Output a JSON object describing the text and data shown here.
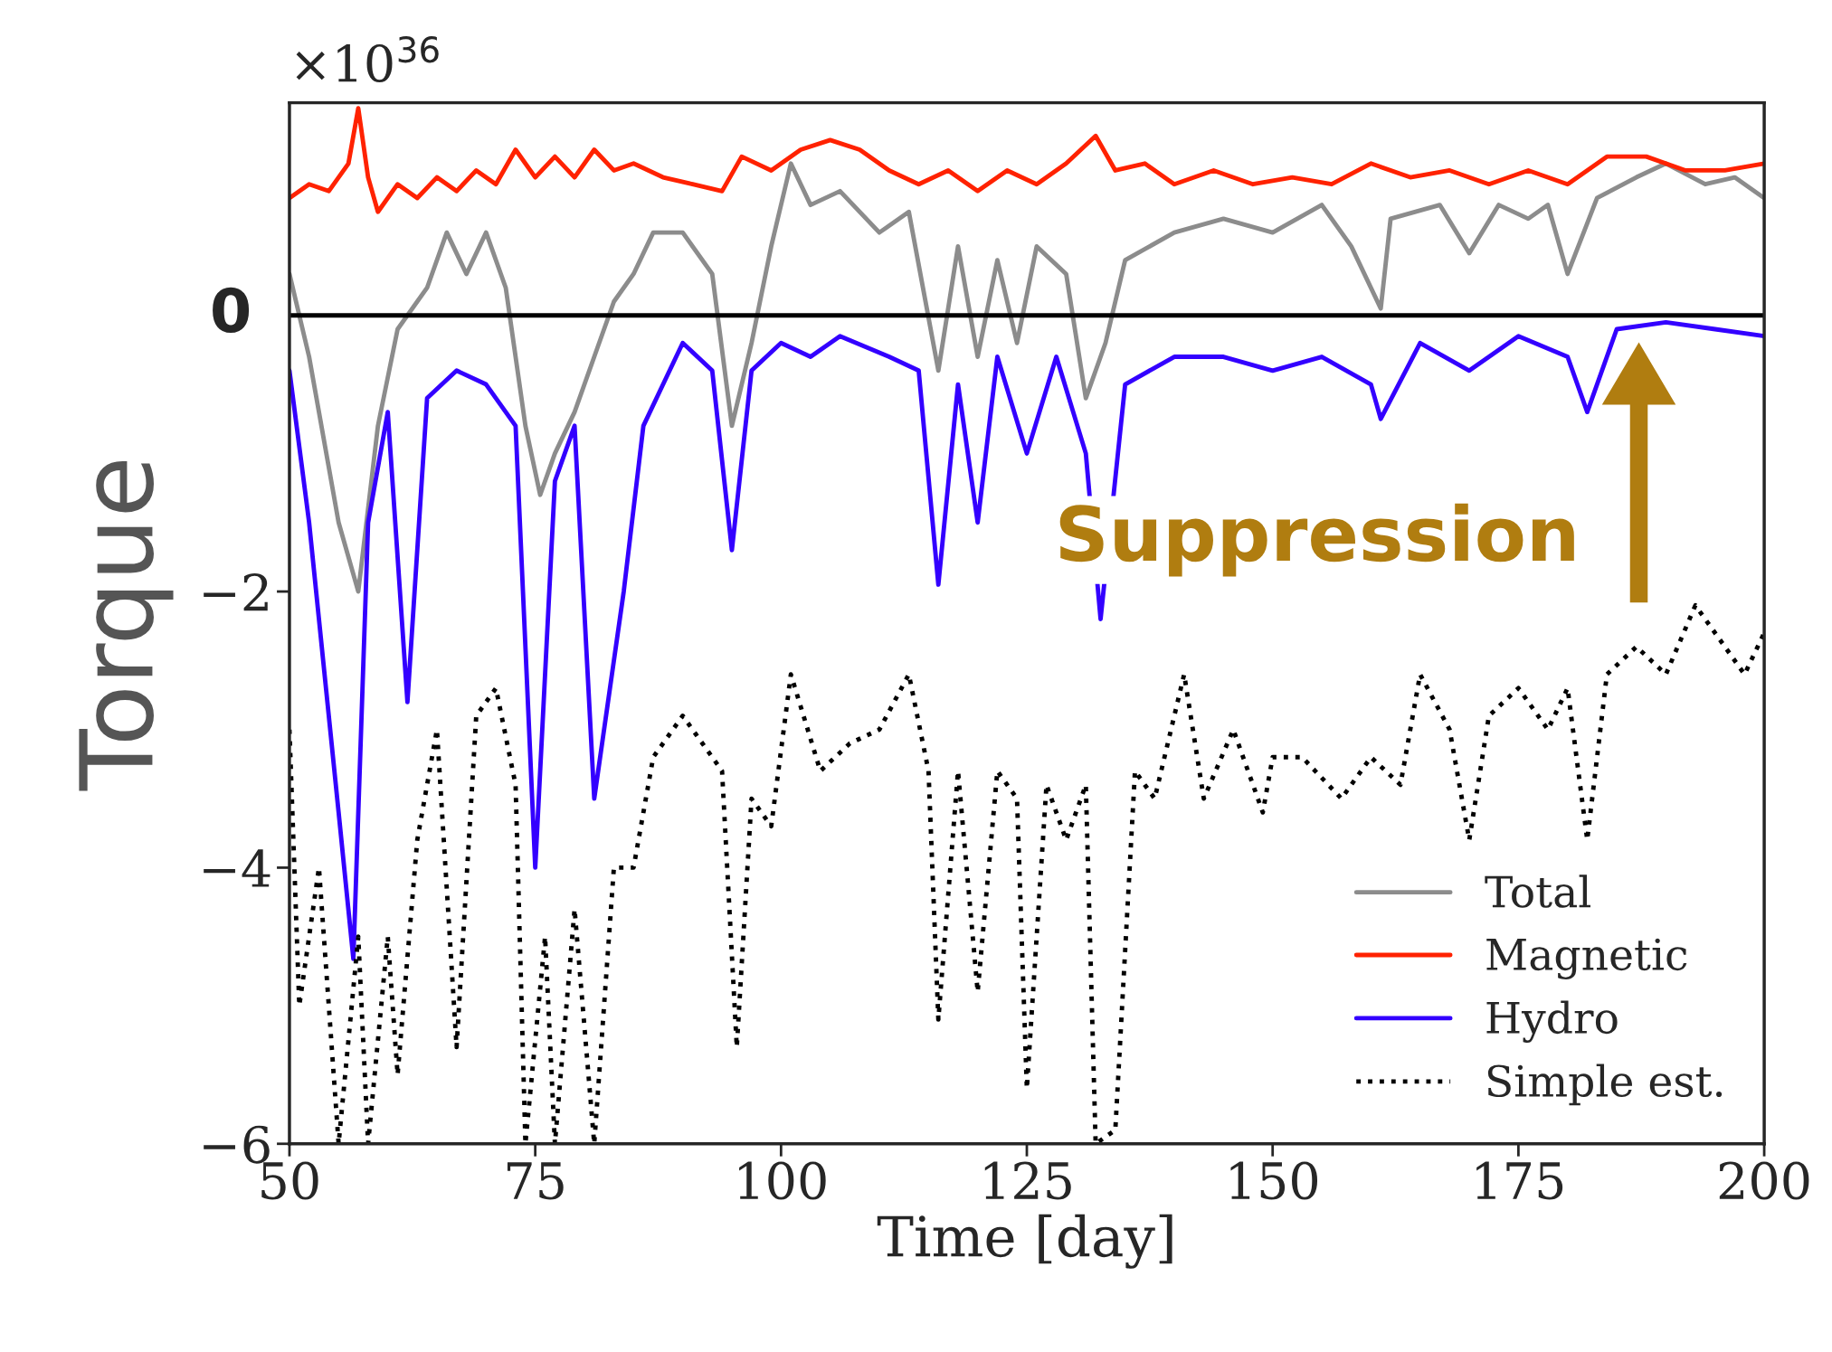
{
  "chart_data": {
    "type": "line",
    "xlabel": "Time [day]",
    "ylabel": "Torque",
    "xlim": [
      50,
      200
    ],
    "xticks": [
      50,
      75,
      100,
      125,
      150,
      175,
      200
    ],
    "ylim": [
      -6,
      1.54
    ],
    "yticks": [
      {
        "value": -6,
        "label": "−6"
      },
      {
        "value": -4,
        "label": "−4"
      },
      {
        "value": -2,
        "label": "−2"
      }
    ],
    "legend": "bottom right",
    "grid": false,
    "ref_lines": [
      {
        "axis": "y",
        "value": 0,
        "label": "0",
        "color": "#000000"
      }
    ],
    "annotations": [
      "×10$^{36}$",
      "Suppression"
    ],
    "series": [
      {
        "name": "Total",
        "color": "#8c8c8c",
        "line_style": "solid",
        "x": [
          50,
          52,
          55,
          57,
          59,
          61,
          64,
          66,
          68,
          70,
          72,
          74,
          75.5,
          77,
          79,
          81,
          83,
          85,
          87,
          90,
          93,
          95,
          97,
          99,
          101,
          103,
          106,
          110,
          113,
          116,
          118,
          120,
          122,
          124,
          126,
          129,
          131,
          133,
          135,
          140,
          145,
          150,
          155,
          158,
          161,
          162,
          167,
          170,
          173,
          176,
          178,
          180,
          183,
          187,
          190,
          194,
          197,
          200
        ],
        "values": [
          0.3,
          -0.3,
          -1.5,
          -2.0,
          -0.8,
          -0.1,
          0.2,
          0.6,
          0.3,
          0.6,
          0.2,
          -0.8,
          -1.3,
          -1.0,
          -0.7,
          -0.3,
          0.1,
          0.3,
          0.6,
          0.6,
          0.3,
          -0.8,
          -0.2,
          0.5,
          1.1,
          0.8,
          0.9,
          0.6,
          0.75,
          -0.4,
          0.5,
          -0.3,
          0.4,
          -0.2,
          0.5,
          0.3,
          -0.6,
          -0.2,
          0.4,
          0.6,
          0.7,
          0.6,
          0.8,
          0.5,
          0.05,
          0.7,
          0.8,
          0.45,
          0.8,
          0.7,
          0.8,
          0.3,
          0.85,
          1.0,
          1.1,
          0.95,
          1.0,
          0.85
        ]
      },
      {
        "name": "Magnetic",
        "color": "#ff2200",
        "line_style": "solid",
        "x": [
          50,
          52,
          54,
          56,
          57,
          58,
          59,
          61,
          63,
          65,
          67,
          69,
          71,
          73,
          75,
          77,
          79,
          81,
          83,
          85,
          88,
          91,
          94,
          96,
          99,
          102,
          105,
          108,
          111,
          114,
          117,
          120,
          123,
          126,
          129,
          132,
          134,
          137,
          140,
          144,
          148,
          152,
          156,
          160,
          164,
          168,
          172,
          176,
          180,
          184,
          188,
          192,
          196,
          200
        ],
        "values": [
          0.85,
          0.95,
          0.9,
          1.1,
          1.5,
          1.0,
          0.75,
          0.95,
          0.85,
          1.0,
          0.9,
          1.05,
          0.95,
          1.2,
          1.0,
          1.15,
          1.0,
          1.2,
          1.05,
          1.1,
          1.0,
          0.95,
          0.9,
          1.15,
          1.05,
          1.2,
          1.27,
          1.2,
          1.05,
          0.95,
          1.05,
          0.9,
          1.05,
          0.95,
          1.1,
          1.3,
          1.05,
          1.1,
          0.95,
          1.05,
          0.95,
          1.0,
          0.95,
          1.1,
          1.0,
          1.05,
          0.95,
          1.05,
          0.95,
          1.15,
          1.15,
          1.05,
          1.05,
          1.1
        ]
      },
      {
        "name": "Hydro",
        "color": "#3300ff",
        "line_style": "solid",
        "x": [
          50,
          52,
          55,
          56.5,
          58,
          60,
          62,
          64,
          67,
          70,
          73,
          75,
          77,
          79,
          81,
          84,
          86,
          88,
          90,
          93,
          95,
          97,
          100,
          103,
          106,
          111,
          114,
          116,
          118,
          120,
          122,
          125,
          128,
          131,
          132.5,
          135,
          140,
          145,
          150,
          155,
          160,
          161,
          165,
          170,
          175,
          180,
          182,
          185,
          190,
          195,
          200
        ],
        "values": [
          -0.4,
          -1.5,
          -3.6,
          -4.66,
          -1.5,
          -0.7,
          -2.8,
          -0.6,
          -0.4,
          -0.5,
          -0.8,
          -4.0,
          -1.2,
          -0.8,
          -3.5,
          -2.0,
          -0.8,
          -0.5,
          -0.2,
          -0.4,
          -1.7,
          -0.4,
          -0.2,
          -0.3,
          -0.15,
          -0.3,
          -0.4,
          -1.95,
          -0.5,
          -1.5,
          -0.3,
          -1.0,
          -0.3,
          -1.0,
          -2.2,
          -0.5,
          -0.3,
          -0.3,
          -0.4,
          -0.3,
          -0.5,
          -0.75,
          -0.2,
          -0.4,
          -0.15,
          -0.3,
          -0.7,
          -0.1,
          -0.05,
          -0.1,
          -0.15
        ]
      },
      {
        "name": "Simple est.",
        "color": "#000000",
        "line_style": "dotted",
        "x": [
          50,
          51,
          53,
          55,
          57,
          58,
          60,
          61,
          63,
          65,
          67,
          69,
          71,
          73,
          74,
          76,
          77,
          79,
          81,
          83,
          85,
          87,
          90,
          92,
          94,
          95.5,
          97,
          99,
          101,
          104,
          107,
          110,
          113,
          115,
          116,
          118,
          120,
          122,
          124,
          125,
          127,
          129,
          131,
          132,
          134,
          136,
          138,
          141,
          143,
          146,
          149,
          150,
          153,
          157,
          160,
          163,
          165,
          168,
          170,
          172,
          175,
          178,
          180,
          182,
          184,
          187,
          190,
          193,
          196,
          198,
          200
        ],
        "values": [
          -3.0,
          -5.0,
          -4.0,
          -6.0,
          -4.5,
          -6.0,
          -4.5,
          -5.5,
          -3.8,
          -3.0,
          -5.3,
          -2.9,
          -2.7,
          -3.4,
          -6.0,
          -4.5,
          -6.0,
          -4.3,
          -6.0,
          -4.0,
          -4.0,
          -3.2,
          -2.9,
          -3.1,
          -3.3,
          -5.3,
          -3.5,
          -3.7,
          -2.6,
          -3.3,
          -3.1,
          -3.0,
          -2.6,
          -3.3,
          -5.1,
          -3.3,
          -4.9,
          -3.3,
          -3.5,
          -5.6,
          -3.4,
          -3.8,
          -3.4,
          -6.0,
          -5.9,
          -3.3,
          -3.5,
          -2.6,
          -3.5,
          -3.0,
          -3.6,
          -3.2,
          -3.2,
          -3.5,
          -3.2,
          -3.4,
          -2.6,
          -3.0,
          -3.8,
          -2.9,
          -2.7,
          -3.0,
          -2.7,
          -3.8,
          -2.6,
          -2.4,
          -2.6,
          -2.1,
          -2.4,
          -2.6,
          -2.3
        ]
      }
    ]
  }
}
